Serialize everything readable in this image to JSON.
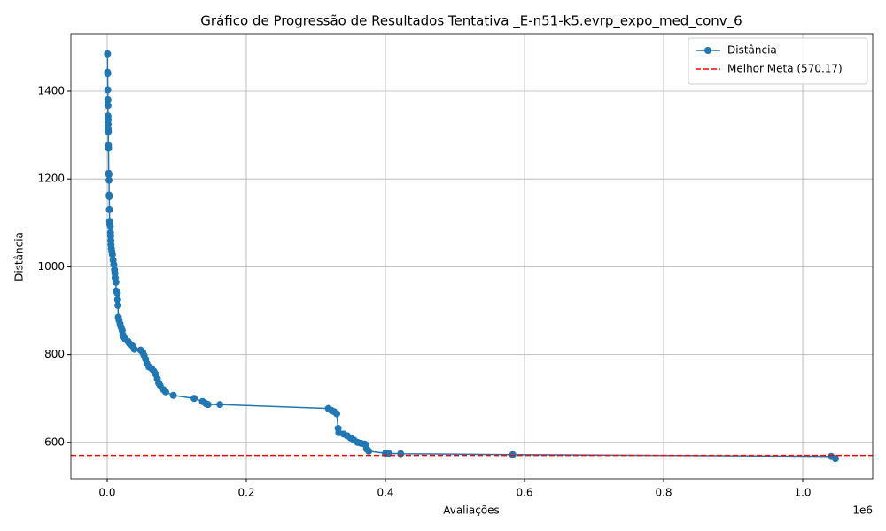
{
  "chart_data": {
    "type": "line",
    "title": "Gráfico de Progressão de Resultados Tentativa _E-n51-k5.evrp_expo_med_conv_6",
    "x_label": "Avaliações",
    "y_label": "Distância",
    "x_offset_label": "1e6",
    "x": [
      500,
      600,
      700,
      900,
      1000,
      1100,
      1200,
      1300,
      1400,
      1500,
      1600,
      1800,
      1900,
      2200,
      2400,
      2600,
      2800,
      3000,
      3200,
      3500,
      3800,
      4500,
      4800,
      5000,
      5200,
      5500,
      6000,
      6500,
      7500,
      8500,
      9500,
      10500,
      11000,
      11500,
      12500,
      13000,
      14500,
      15000,
      15500,
      16000,
      17000,
      18500,
      20000,
      21500,
      22500,
      24000,
      26000,
      30000,
      32000,
      36000,
      39000,
      48000,
      51000,
      53000,
      55000,
      57000,
      60000,
      64000,
      67000,
      70000,
      72000,
      74000,
      76000,
      81000,
      84000,
      95000,
      125000,
      137000,
      142000,
      145000,
      162000,
      318000,
      322000,
      326000,
      330000,
      332000,
      333000,
      340000,
      345000,
      350000,
      355000,
      360000,
      365000,
      370000,
      372000,
      373000,
      376000,
      400000,
      405000,
      422000,
      583000,
      1041000,
      1047000
    ],
    "series": [
      {
        "name": "Distância",
        "color": "#1f77b4",
        "values": [
          1485,
          1443,
          1440,
          1403,
          1380,
          1367,
          1343,
          1335,
          1325,
          1313,
          1308,
          1276,
          1270,
          1213,
          1210,
          1197,
          1163,
          1160,
          1130,
          1103,
          1097,
          1092,
          1078,
          1070,
          1060,
          1050,
          1042,
          1035,
          1028,
          1015,
          1005,
          993,
          985,
          975,
          965,
          945,
          940,
          925,
          912,
          885,
          878,
          870,
          862,
          855,
          845,
          840,
          835,
          830,
          825,
          820,
          812,
          810,
          805,
          798,
          790,
          780,
          772,
          768,
          762,
          755,
          745,
          735,
          730,
          720,
          715,
          707,
          700,
          693,
          688,
          686,
          686,
          677,
          673,
          670,
          665,
          632,
          622,
          619,
          615,
          610,
          605,
          600,
          598,
          596,
          594,
          585,
          580,
          575,
          575,
          574,
          572,
          568,
          563
        ]
      }
    ],
    "reference_line": {
      "name": "Melhor Meta (570.17)",
      "value": 570.17,
      "color": "#ff0000"
    },
    "xlim": [
      -52200,
      1100600
    ],
    "ylim": [
      517,
      1531
    ],
    "xticks": [
      {
        "value": 0,
        "label": "0.0"
      },
      {
        "value": 200000,
        "label": "0.2"
      },
      {
        "value": 400000,
        "label": "0.4"
      },
      {
        "value": 600000,
        "label": "0.6"
      },
      {
        "value": 800000,
        "label": "0.8"
      },
      {
        "value": 1000000,
        "label": "1.0"
      }
    ],
    "yticks": [
      600,
      800,
      1000,
      1200,
      1400
    ],
    "grid": true,
    "legend": "upper right"
  }
}
